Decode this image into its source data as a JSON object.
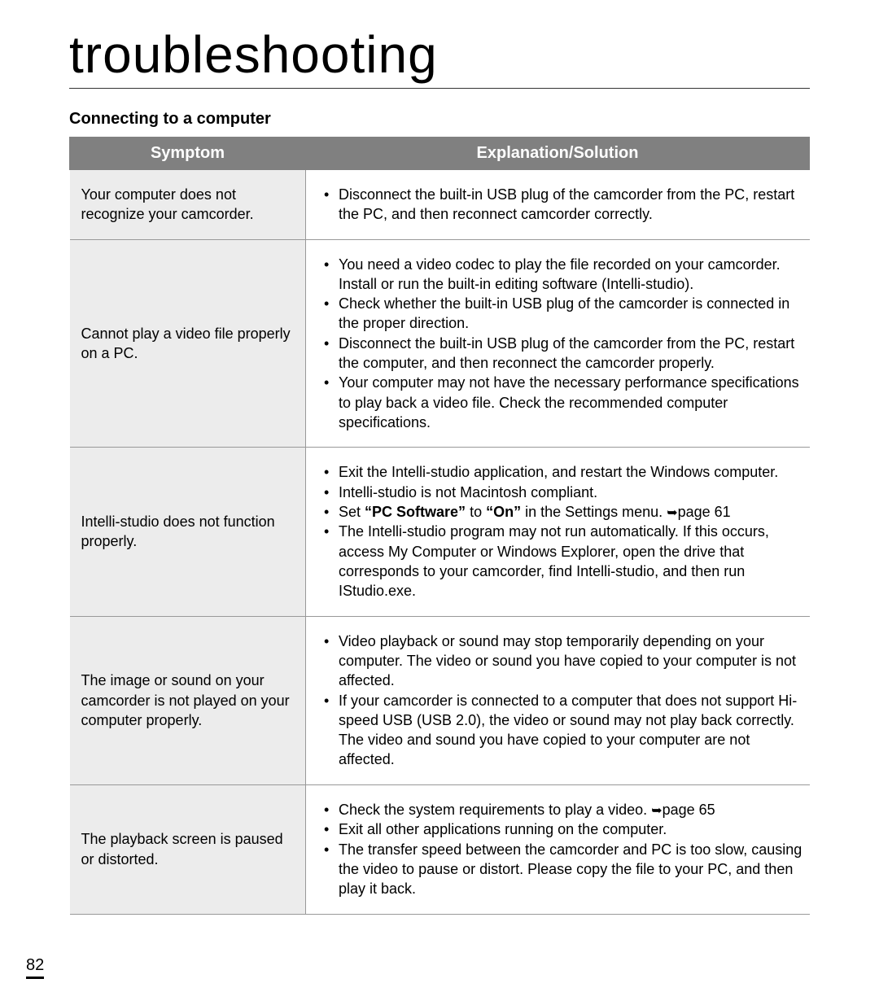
{
  "title": "troubleshooting",
  "section": "Connecting to a computer",
  "headers": {
    "symptom": "Symptom",
    "solution": "Explanation/Solution"
  },
  "rows": [
    {
      "symptom": "Your computer does not recognize your camcorder.",
      "solutions": [
        {
          "text": "Disconnect the built-in USB plug of the camcorder from the PC, restart the PC, and then reconnect camcorder correctly."
        }
      ]
    },
    {
      "symptom": "Cannot play a video file properly on a PC.",
      "solutions": [
        {
          "text": "You need a video codec to play the file recorded on your camcorder. Install or run the built-in editing software (Intelli-studio)."
        },
        {
          "text": "Check whether the built-in USB plug of the camcorder is connected in the proper direction."
        },
        {
          "text": "Disconnect the built-in USB plug of the camcorder from the PC, restart the computer, and then reconnect the camcorder properly."
        },
        {
          "text": "Your computer may not have the necessary performance specifications to play back a video file. Check the recommended computer specifications."
        }
      ]
    },
    {
      "symptom": "Intelli-studio does not function properly.",
      "solutions": [
        {
          "text": "Exit the Intelli-studio application, and restart the Windows computer."
        },
        {
          "text": "Intelli-studio is not Macintosh compliant."
        },
        {
          "html": "Set <span class=\"bold\">“PC Software”</span> to <span class=\"bold\">“On”</span> in the Settings menu. <span class=\"arrow\">➥</span>page 61"
        },
        {
          "text": "The Intelli-studio program may not run automatically. If this occurs, access My Computer or Windows Explorer, open the drive that corresponds to your camcorder, find Intelli-studio, and then run IStudio.exe."
        }
      ]
    },
    {
      "symptom": "The image or sound on your camcorder is not played on your computer properly.",
      "solutions": [
        {
          "text": "Video playback or sound may stop temporarily depending on your computer. The video or sound you have copied to your computer is not affected."
        },
        {
          "text": "If your camcorder is connected to a computer that does not support Hi-speed USB (USB 2.0), the video or sound may not play back correctly.",
          "extra": "The video and sound you have copied to your computer are not affected."
        }
      ]
    },
    {
      "symptom": "The playback screen is paused or distorted.",
      "solutions": [
        {
          "html": "Check the system requirements to play a video. <span class=\"arrow\">➥</span>page 65"
        },
        {
          "text": "Exit all other applications running on the computer."
        },
        {
          "text": "The transfer speed between the camcorder and PC is too slow, causing the video to pause or distort. Please copy the file to your PC, and then play it back."
        }
      ]
    }
  ],
  "pageNumber": "82"
}
